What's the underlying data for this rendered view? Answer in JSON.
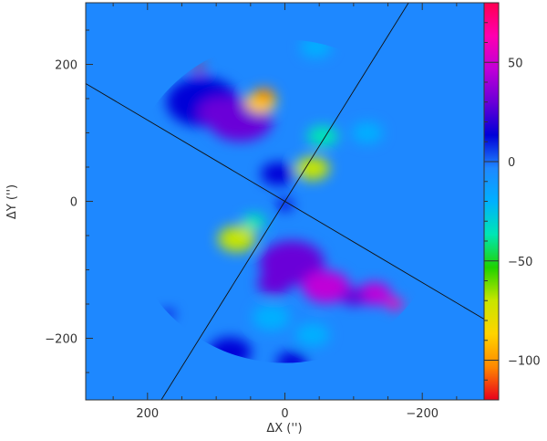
{
  "chart_data": {
    "type": "heatmap",
    "xlabel": "ΔX ('')",
    "ylabel": "ΔY ('')",
    "x_axis": {
      "range": [
        290,
        -290
      ],
      "reversed": true,
      "ticks": [
        {
          "value": 200,
          "label": "200"
        },
        {
          "value": 0,
          "label": "0"
        },
        {
          "value": -200,
          "label": "−200"
        }
      ]
    },
    "y_axis": {
      "range": [
        -290,
        290
      ],
      "ticks": [
        {
          "value": 200,
          "label": "200"
        },
        {
          "value": 0,
          "label": "0"
        },
        {
          "value": -200,
          "label": "−200"
        }
      ]
    },
    "colorbar": {
      "range": [
        -120,
        80
      ],
      "ticks": [
        {
          "value": 50,
          "label": "50"
        },
        {
          "value": 0,
          "label": "0"
        },
        {
          "value": -50,
          "label": "−50"
        },
        {
          "value": -100,
          "label": "−100"
        }
      ],
      "colormap": [
        "#e8001c",
        "#ff8800",
        "#ffd400",
        "#c8e600",
        "#1fd200",
        "#00e6b4",
        "#00b0ff",
        "#1e88ff",
        "#0000d8",
        "#6a00d8",
        "#c000d8",
        "#ff00b0",
        "#ff0050"
      ]
    },
    "background_value": 0,
    "map_radius": 235,
    "regions": [
      {
        "x": 120,
        "y": 145,
        "r": 42,
        "value": 18
      },
      {
        "x": 65,
        "y": 120,
        "r": 38,
        "value": 25
      },
      {
        "x": 95,
        "y": 130,
        "r": 25,
        "value": 32
      },
      {
        "x": 10,
        "y": 40,
        "r": 20,
        "value": 15
      },
      {
        "x": 35,
        "y": 145,
        "r": 18,
        "value": -80
      },
      {
        "x": 30,
        "y": 155,
        "r": 12,
        "value": -100
      },
      {
        "x": 125,
        "y": 195,
        "r": 6,
        "value": -118
      },
      {
        "x": -40,
        "y": 48,
        "r": 20,
        "value": -62
      },
      {
        "x": -55,
        "y": 95,
        "r": 18,
        "value": -35
      },
      {
        "x": 70,
        "y": -55,
        "r": 22,
        "value": -65
      },
      {
        "x": 45,
        "y": -30,
        "r": 14,
        "value": -35
      },
      {
        "x": -10,
        "y": -90,
        "r": 38,
        "value": 32
      },
      {
        "x": -60,
        "y": -125,
        "r": 28,
        "value": 40
      },
      {
        "x": -130,
        "y": -135,
        "r": 20,
        "value": 48
      },
      {
        "x": -160,
        "y": -150,
        "r": 10,
        "value": 62
      },
      {
        "x": -100,
        "y": -140,
        "r": 15,
        "value": 35
      },
      {
        "x": 15,
        "y": -120,
        "r": 20,
        "value": 22
      },
      {
        "x": 80,
        "y": -220,
        "r": 25,
        "value": 15
      },
      {
        "x": 20,
        "y": -170,
        "r": 22,
        "value": -15
      },
      {
        "x": -40,
        "y": -195,
        "r": 20,
        "value": -18
      },
      {
        "x": -10,
        "y": -235,
        "r": 18,
        "value": 8
      },
      {
        "x": 170,
        "y": -165,
        "r": 8,
        "value": 12
      },
      {
        "x": -45,
        "y": 225,
        "r": 18,
        "value": -28
      },
      {
        "x": -120,
        "y": 100,
        "r": 18,
        "value": -12
      },
      {
        "x": 0,
        "y": -5,
        "r": 10,
        "value": 15
      }
    ],
    "overlay_lines": [
      {
        "x1": 290,
        "y1": 172,
        "x2": -290,
        "y2": -172
      },
      {
        "x1": 180,
        "y1": -290,
        "x2": -180,
        "y2": 290
      }
    ]
  }
}
